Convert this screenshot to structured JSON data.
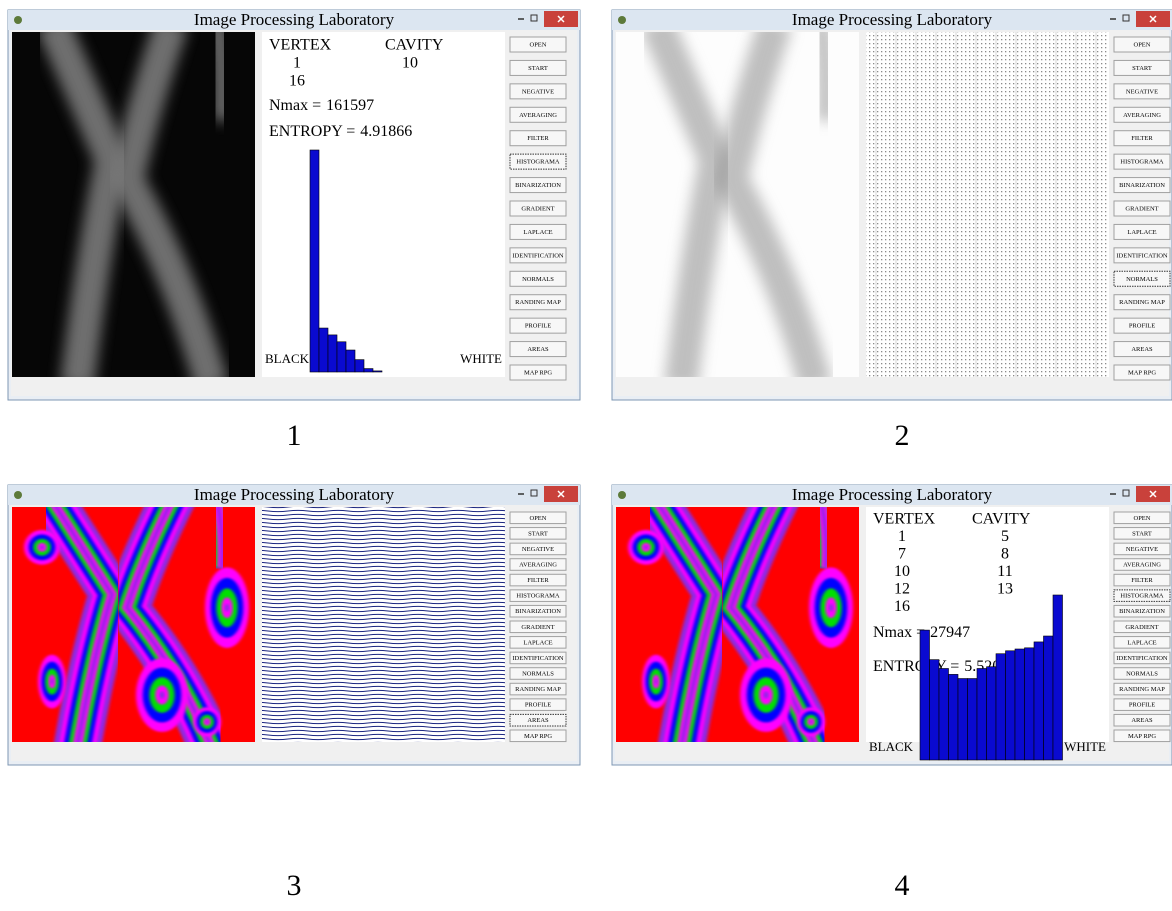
{
  "title": "Image Processing Laboratory",
  "buttons": [
    "OPEN",
    "START",
    "NEGATIVE",
    "AVERAGING",
    "FILTER",
    "HISTOGRAMA",
    "BINARIZATION",
    "GRADIENT",
    "LAPLACE",
    "IDENTIFICATION",
    "NORMALS",
    "RANDING MAP",
    "PROFILE",
    "AREAS",
    "MAP RPG"
  ],
  "windows": [
    {
      "caption": 1,
      "pressed": 5,
      "stats": {
        "vertex_header": "VERTEX",
        "cavity_header": "CAVITY",
        "vertex": [
          1,
          16
        ],
        "cavity": [
          10
        ],
        "nmax_label": "Nmax =",
        "nmax": 161597,
        "entropy_label": "ENTROPY =",
        "entropy": 4.91866,
        "black": "BLACK",
        "white": "WHITE",
        "histogram": [
          161597,
          32000,
          27000,
          22000,
          16000,
          9000,
          2500,
          800
        ]
      }
    },
    {
      "caption": 2,
      "pressed": 10
    },
    {
      "caption": 3,
      "pressed": 13
    },
    {
      "caption": 4,
      "pressed": 5,
      "stats": {
        "vertex_header": "VERTEX",
        "cavity_header": "CAVITY",
        "vertex": [
          1,
          7,
          10,
          12,
          16
        ],
        "cavity": [
          5,
          8,
          11,
          13
        ],
        "nmax_label": "Nmax =",
        "nmax": 27947,
        "entropy_label": "ENTROPY =",
        "entropy": 5.52026,
        "black": "BLACK",
        "white": "WHITE",
        "histogram": [
          22000,
          17000,
          15500,
          14500,
          13800,
          13800,
          15500,
          15800,
          18000,
          18500,
          18800,
          19000,
          20000,
          21000,
          27947
        ]
      }
    }
  ]
}
